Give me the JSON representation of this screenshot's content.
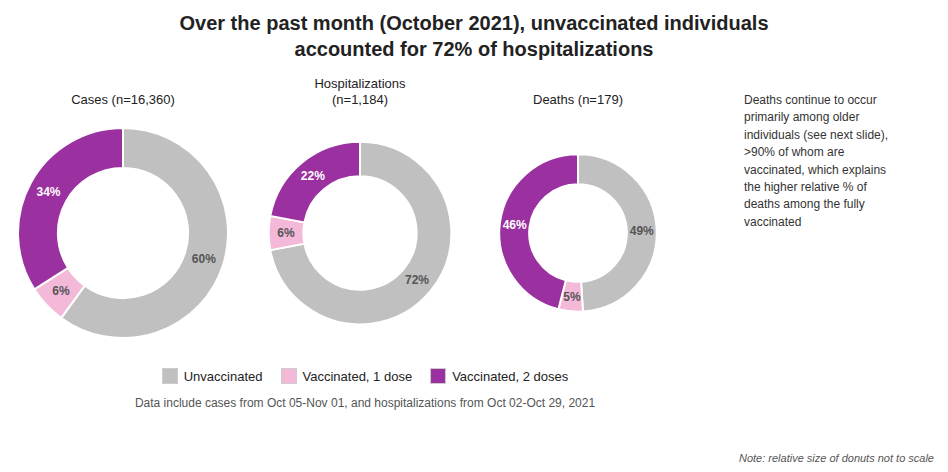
{
  "chart_data": {
    "type": "pie",
    "title": "Over the past month (October 2021), unvaccinated individuals",
    "subtitle": "accounted for 72% of hospitalizations",
    "categories": [
      "Unvaccinated",
      "Vaccinated, 1 dose",
      "Vaccinated, 2 doses"
    ],
    "colors": [
      "#c0c0c0",
      "#f4b8d8",
      "#9b30a0"
    ],
    "series": [
      {
        "name": "Cases (n=16,360)",
        "values": [
          60,
          6,
          34
        ],
        "value_labels": [
          "60%",
          "6%",
          "34%"
        ]
      },
      {
        "name": "Hospitalizations\n(n=1,184)",
        "values": [
          72,
          6,
          22
        ],
        "value_labels": [
          "72%",
          "6%",
          "22%"
        ]
      },
      {
        "name": "Deaths (n=179)",
        "values": [
          49,
          5,
          46
        ],
        "value_labels": [
          "49%",
          "5%",
          "46%"
        ]
      }
    ],
    "data_labels": true,
    "legend": "bottom",
    "annotations": [
      "Deaths continue to occur\nprimarily among older\nindividuals (see next slide),\n>90% of whom are\nvaccinated, which explains\nthe higher relative % of\ndeaths among the fully\nvaccinated",
      "Data include cases from Oct 05-Nov 01, and hospitalizations from Oct 02-Oct 29, 2021",
      "Note: relative size of donuts not to scale"
    ]
  }
}
